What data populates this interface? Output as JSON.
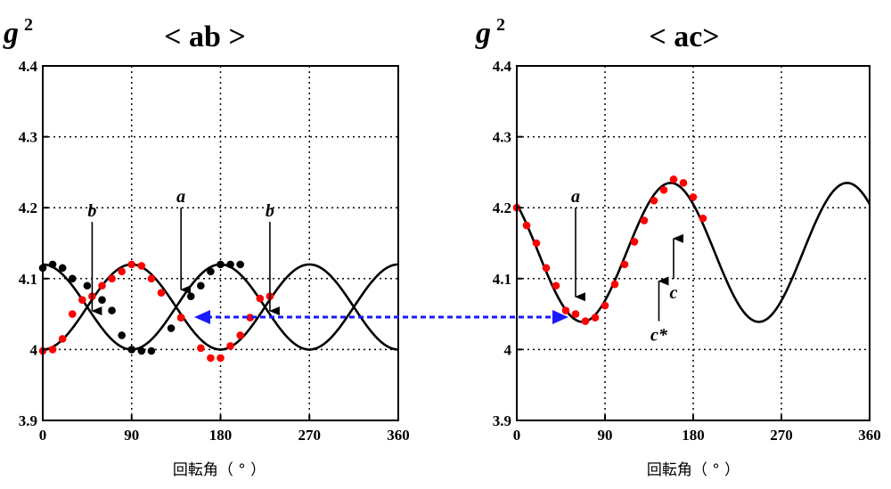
{
  "chart_data": [
    {
      "type": "scatter",
      "title": "< ab >",
      "ylabel": "g",
      "ylabel_sup": "2",
      "xlabel": "回転角（ ° ）",
      "xlim": [
        0,
        360
      ],
      "ylim": [
        3.9,
        4.4
      ],
      "xticks": [
        "0",
        "90",
        "180",
        "270",
        "360"
      ],
      "yticks": [
        "3.9",
        "4",
        "4.1",
        "4.2",
        "4.3",
        "4.4"
      ],
      "grid": true,
      "fit_curves": [
        {
          "mean": 4.06,
          "amp": 0.06,
          "phase_deg": 90
        },
        {
          "mean": 4.06,
          "amp": 0.06,
          "phase_deg": 0
        }
      ],
      "series": [
        {
          "color": "#000000",
          "x": [
            0,
            10,
            20,
            30,
            45,
            60,
            70,
            80,
            90,
            100,
            110,
            130,
            140,
            150,
            160,
            170,
            180,
            190,
            200
          ],
          "y": [
            4.115,
            4.12,
            4.115,
            4.1,
            4.09,
            4.07,
            4.055,
            4.02,
            4.0,
            3.998,
            3.998,
            4.03,
            4.045,
            4.075,
            4.09,
            4.11,
            4.12,
            4.12,
            4.12
          ]
        },
        {
          "color": "#ff0000",
          "x": [
            0,
            10,
            20,
            30,
            40,
            50,
            60,
            70,
            80,
            90,
            100,
            110,
            120,
            140,
            160,
            170,
            180,
            190,
            200,
            210,
            220,
            230
          ],
          "y": [
            3.998,
            4.0,
            4.015,
            4.05,
            4.07,
            4.075,
            4.09,
            4.1,
            4.11,
            4.12,
            4.118,
            4.1,
            4.08,
            4.045,
            4.002,
            3.988,
            3.988,
            4.005,
            4.02,
            4.045,
            4.072,
            4.075
          ]
        }
      ],
      "annotations": [
        {
          "text": "b",
          "x": 50,
          "y": 4.18
        },
        {
          "text": "a",
          "x": 140,
          "y": 4.2
        },
        {
          "text": "b",
          "x": 230,
          "y": 4.18
        }
      ]
    },
    {
      "type": "scatter",
      "title": "< ac>",
      "ylabel": "g",
      "ylabel_sup": "2",
      "xlabel": "回転角（ ° ）",
      "xlim": [
        0,
        360
      ],
      "ylim": [
        3.9,
        4.4
      ],
      "xticks": [
        "0",
        "90",
        "180",
        "270",
        "360"
      ],
      "yticks": [
        "3.9",
        "4",
        "4.1",
        "4.2",
        "4.3",
        "4.4"
      ],
      "grid": true,
      "fit_curves": [
        {
          "mean": 4.137,
          "amp": 0.098,
          "phase_deg": 157
        }
      ],
      "series": [
        {
          "color": "#ff0000",
          "x": [
            0,
            10,
            20,
            30,
            40,
            50,
            60,
            70,
            80,
            90,
            100,
            110,
            120,
            130,
            140,
            150,
            160,
            170,
            180,
            190
          ],
          "y": [
            4.2,
            4.175,
            4.15,
            4.115,
            4.09,
            4.055,
            4.05,
            4.04,
            4.045,
            4.062,
            4.092,
            4.12,
            4.152,
            4.182,
            4.21,
            4.225,
            4.24,
            4.235,
            4.215,
            4.185
          ]
        }
      ],
      "annotations": [
        {
          "text": "a",
          "x": 60,
          "y": 4.2
        },
        {
          "text": "c",
          "x": 160,
          "y": 4.1
        },
        {
          "text": "c*",
          "x": 145,
          "y": 4.04
        }
      ]
    }
  ]
}
